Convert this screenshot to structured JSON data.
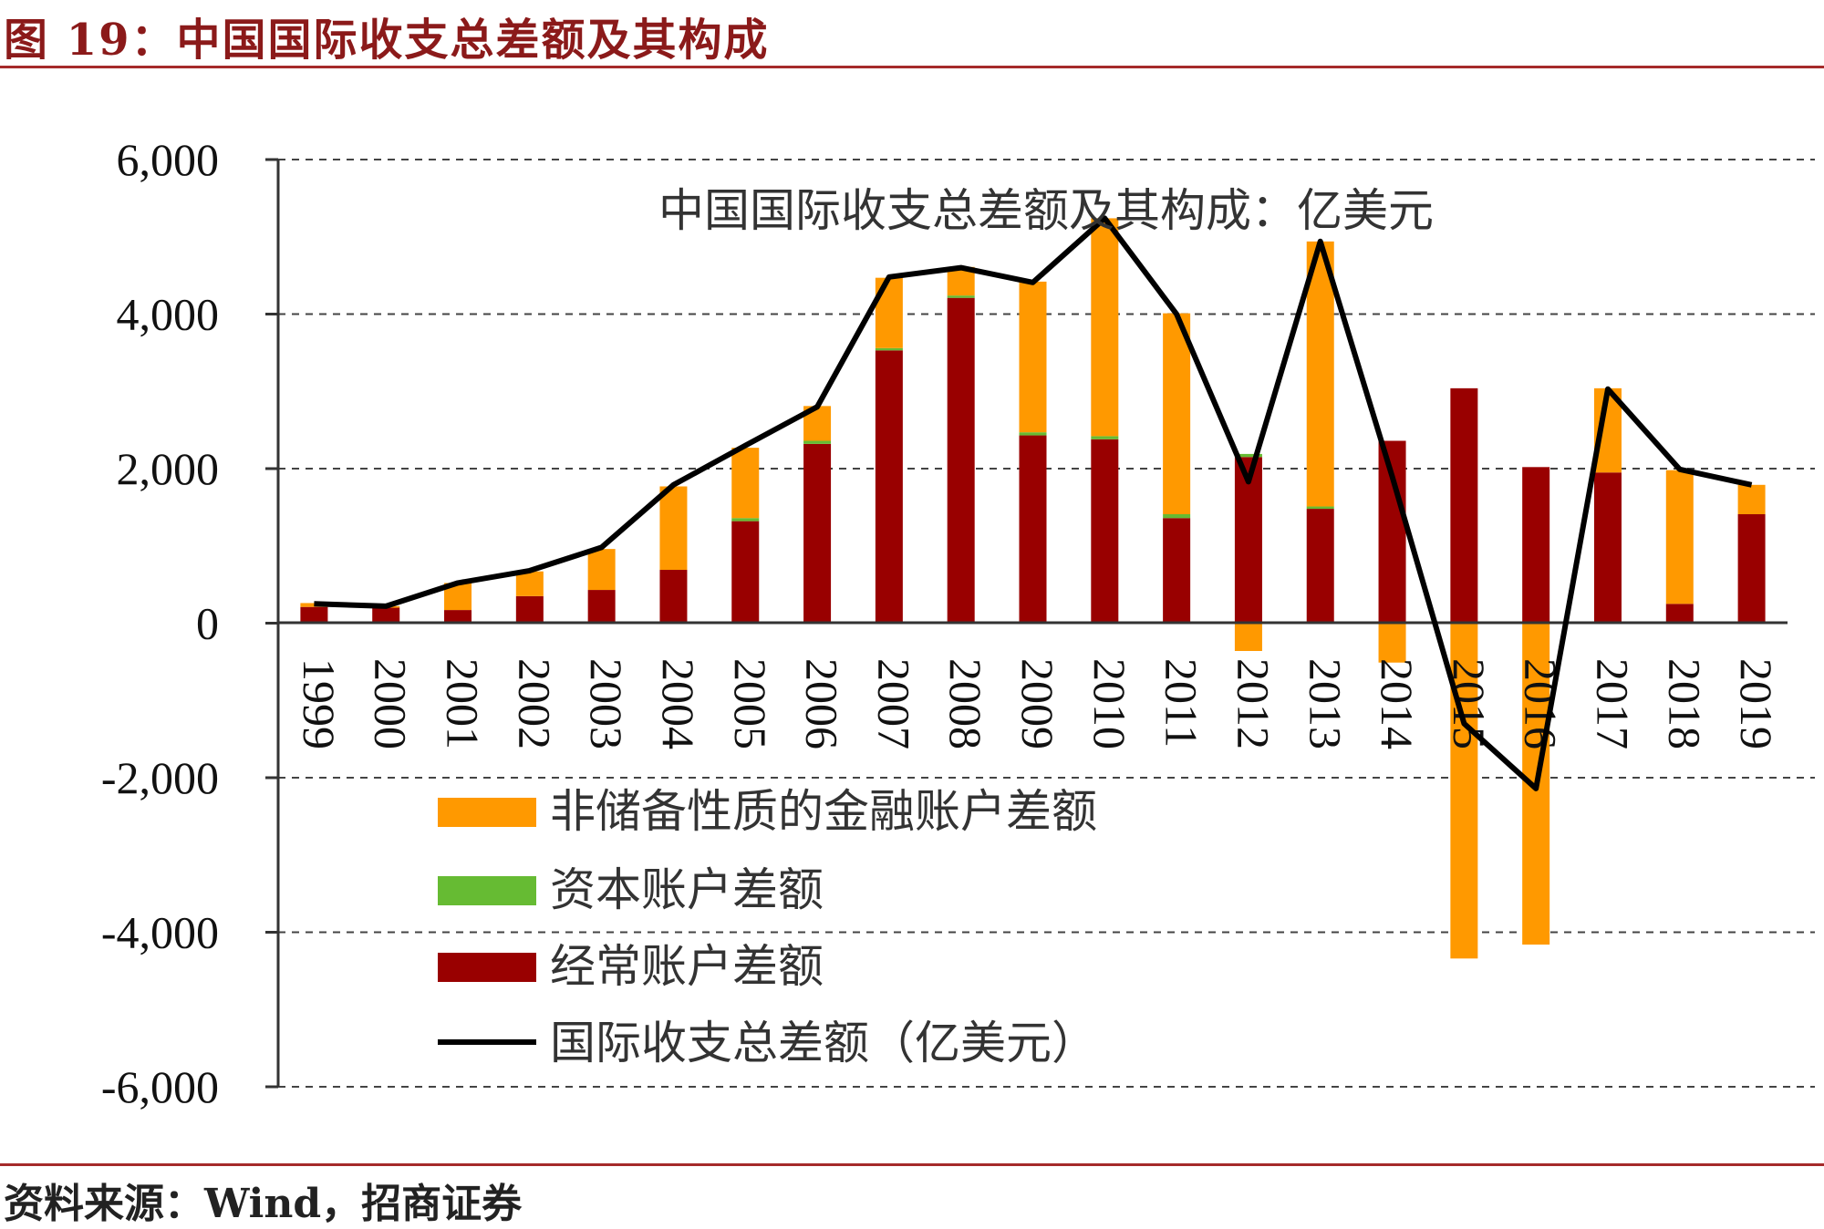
{
  "header": {
    "figure_title": "图 19：中国国际收支总差额及其构成"
  },
  "footer": {
    "source": "资料来源：Wind，招商证券"
  },
  "colors": {
    "financial": "#ff9900",
    "capital": "#66bb33",
    "current": "#990000",
    "total_line": "#000000",
    "rule": "#a52a2a"
  },
  "chart_data": {
    "type": "bar",
    "stacked": true,
    "title": "中国国际收支总差额及其构成：亿美元",
    "ylim": [
      -6000,
      6000
    ],
    "yticks": [
      6000,
      4000,
      2000,
      0,
      -2000,
      -4000,
      -6000
    ],
    "ytick_labels": [
      "6,000",
      "4,000",
      "2,000",
      "0",
      "-2,000",
      "-4,000",
      "-6,000"
    ],
    "grid": "horizontal dashed",
    "legend_position": "bottom-left inside plot",
    "categories": [
      "1999",
      "2000",
      "2001",
      "2002",
      "2003",
      "2004",
      "2005",
      "2006",
      "2007",
      "2008",
      "2009",
      "2010",
      "2011",
      "2012",
      "2013",
      "2014",
      "2015",
      "2016",
      "2017",
      "2018",
      "2019"
    ],
    "series": [
      {
        "name": "非储备性质的金融账户差额",
        "kind": "bar",
        "color_key": "financial",
        "values": [
          50,
          20,
          350,
          320,
          530,
          1080,
          910,
          450,
          910,
          370,
          1950,
          2820,
          2600,
          -360,
          3430,
          -510,
          -4340,
          -4160,
          1090,
          1730,
          380
        ]
      },
      {
        "name": "资本账户差额",
        "kind": "bar",
        "color_key": "capital",
        "values": [
          0,
          0,
          0,
          0,
          0,
          0,
          40,
          40,
          30,
          30,
          40,
          40,
          50,
          40,
          30,
          0,
          0,
          0,
          0,
          0,
          0
        ]
      },
      {
        "name": "经常账户差额",
        "kind": "bar",
        "color_key": "current",
        "values": [
          210,
          200,
          170,
          350,
          430,
          690,
          1320,
          2320,
          3530,
          4210,
          2430,
          2380,
          1360,
          2150,
          1480,
          2360,
          3040,
          2020,
          1950,
          250,
          1410
        ]
      },
      {
        "name": "国际收支总差额（亿美元）",
        "kind": "line",
        "color_key": "total_line",
        "values": [
          250,
          220,
          520,
          680,
          980,
          1790,
          2300,
          2800,
          4480,
          4600,
          4410,
          5240,
          4000,
          1830,
          4940,
          1900,
          -1300,
          -2140,
          3030,
          1990,
          1790
        ]
      }
    ]
  }
}
